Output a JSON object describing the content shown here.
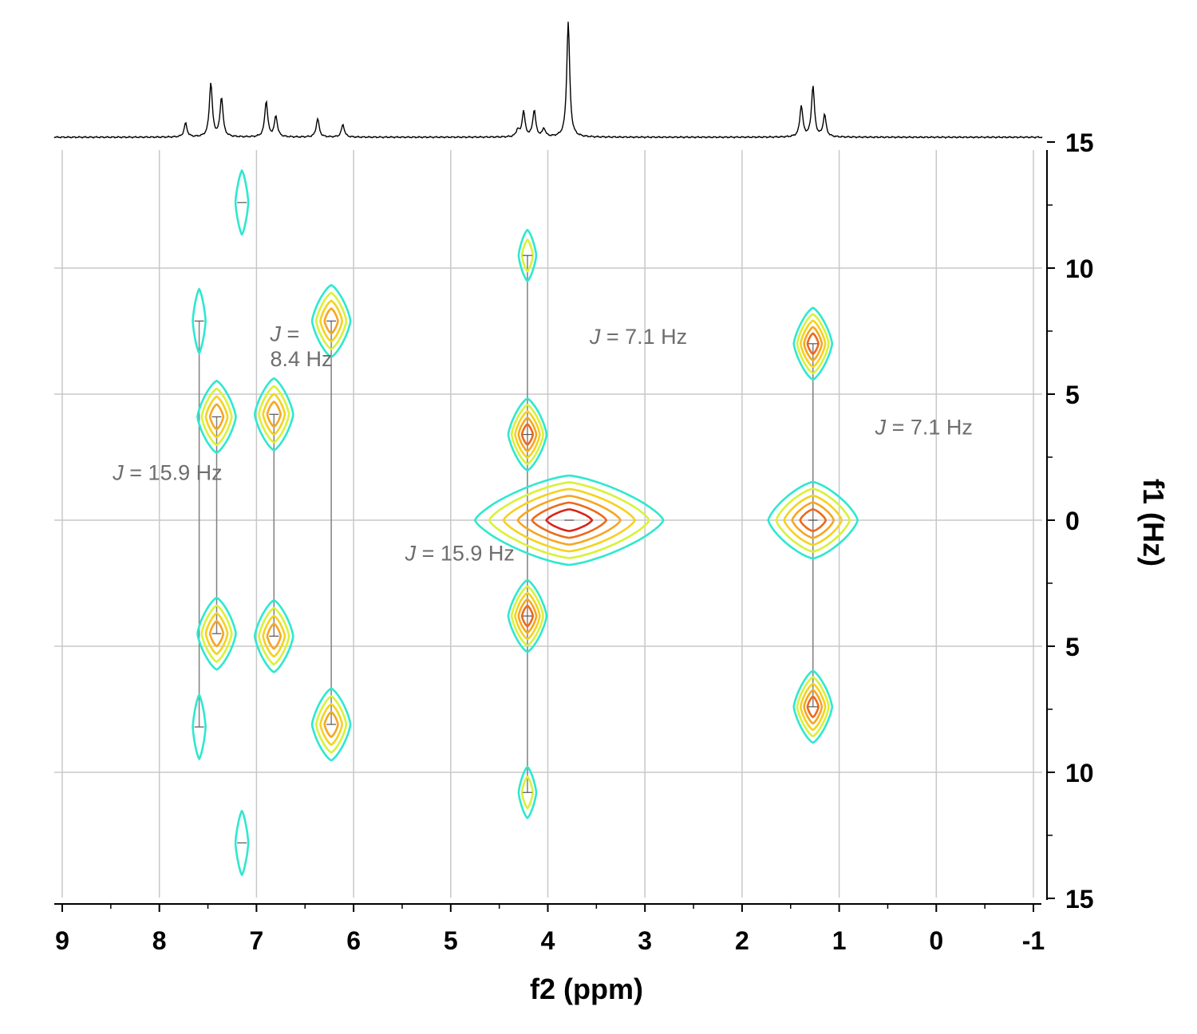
{
  "chart_data": {
    "type": "2D J-resolved NMR contour plot",
    "xlabel": "f2 (ppm)",
    "ylabel": "f1 (Hz)",
    "x_range": [
      9.1,
      -1.1
    ],
    "y_range": [
      15,
      -15
    ],
    "x_ticks": [
      "9",
      "8",
      "7",
      "6",
      "5",
      "4",
      "3",
      "2",
      "1",
      "0",
      "-1"
    ],
    "y_ticks": [
      "15",
      "10",
      "5",
      "0",
      "5",
      "10",
      "15"
    ],
    "grid": true,
    "colors": {
      "level1": "#2ee8cf",
      "level2": "#d8f238",
      "level3": "#f5d21e",
      "level4": "#f5a623",
      "level5": "#ec6a1c",
      "level6": "#d9241a",
      "coupling_line": "#808080",
      "annotation": "#6e6e6e",
      "projection": "#000000"
    },
    "projection_1d": {
      "peaks": [
        {
          "ppm": 7.73,
          "height": 0.12
        },
        {
          "ppm": 7.47,
          "height": 0.47
        },
        {
          "ppm": 7.36,
          "height": 0.34
        },
        {
          "ppm": 6.9,
          "height": 0.31
        },
        {
          "ppm": 6.8,
          "height": 0.18
        },
        {
          "ppm": 6.37,
          "height": 0.16
        },
        {
          "ppm": 6.11,
          "height": 0.11
        },
        {
          "ppm": 4.31,
          "height": 0.06
        },
        {
          "ppm": 4.25,
          "height": 0.22
        },
        {
          "ppm": 4.14,
          "height": 0.23
        },
        {
          "ppm": 4.04,
          "height": 0.07
        },
        {
          "ppm": 3.79,
          "height": 1.0
        },
        {
          "ppm": 1.39,
          "height": 0.27
        },
        {
          "ppm": 1.27,
          "height": 0.44
        },
        {
          "ppm": 1.15,
          "height": 0.19
        }
      ]
    },
    "multiplets": [
      {
        "f2": 7.59,
        "coupling_Hz": 15.9,
        "components": [
          {
            "f1": 7.9,
            "levels": 1
          },
          {
            "f1": -8.2,
            "levels": 1
          }
        ]
      },
      {
        "f2": 7.41,
        "coupling_Hz": 8.4,
        "components": [
          {
            "f1": 4.1,
            "levels": 4
          },
          {
            "f1": -4.5,
            "levels": 4
          }
        ]
      },
      {
        "f2": 6.82,
        "coupling_Hz": 8.4,
        "components": [
          {
            "f1": 4.2,
            "levels": 4
          },
          {
            "f1": -4.6,
            "levels": 4
          }
        ]
      },
      {
        "f2": 6.23,
        "coupling_Hz": 15.9,
        "components": [
          {
            "f1": 7.9,
            "levels": 4
          },
          {
            "f1": -8.1,
            "levels": 4
          }
        ]
      },
      {
        "f2": 4.21,
        "coupling_Hz": 7.1,
        "components": [
          {
            "f1": 10.5,
            "levels": 2
          },
          {
            "f1": 3.4,
            "levels": 5
          },
          {
            "f1": -3.8,
            "levels": 5
          },
          {
            "f1": -10.8,
            "levels": 2
          }
        ]
      },
      {
        "f2": 3.78,
        "coupling_Hz": 0,
        "components": [
          {
            "f1": 0.0,
            "levels": 6
          }
        ]
      },
      {
        "f2": 1.27,
        "coupling_Hz": 7.1,
        "components": [
          {
            "f1": 7.0,
            "levels": 5
          },
          {
            "f1": 0.0,
            "levels": 5
          },
          {
            "f1": -7.4,
            "levels": 5
          }
        ]
      },
      {
        "f2": 7.15,
        "coupling_Hz": 0,
        "components": [
          {
            "f1": 12.6,
            "levels": 1
          },
          {
            "f1": -12.8,
            "levels": 1
          }
        ]
      }
    ],
    "annotations": [
      {
        "j": "J",
        "text": " = 15.9 Hz",
        "f2": 8.48,
        "f1": 1.6
      },
      {
        "j": "J",
        "text": " =",
        "f2": 6.86,
        "f1": 7.1
      },
      {
        "j": "",
        "text": "8.4 Hz",
        "f2": 6.86,
        "f1": 6.1
      },
      {
        "j": "J",
        "text": " = 7.1 Hz",
        "f2": 3.57,
        "f1": 7.0
      },
      {
        "j": "J",
        "text": " = 15.9 Hz",
        "f2": 5.47,
        "f1": -1.6
      },
      {
        "j": "J",
        "text": " = 7.1 Hz",
        "f2": 0.63,
        "f1": 3.4
      }
    ]
  }
}
